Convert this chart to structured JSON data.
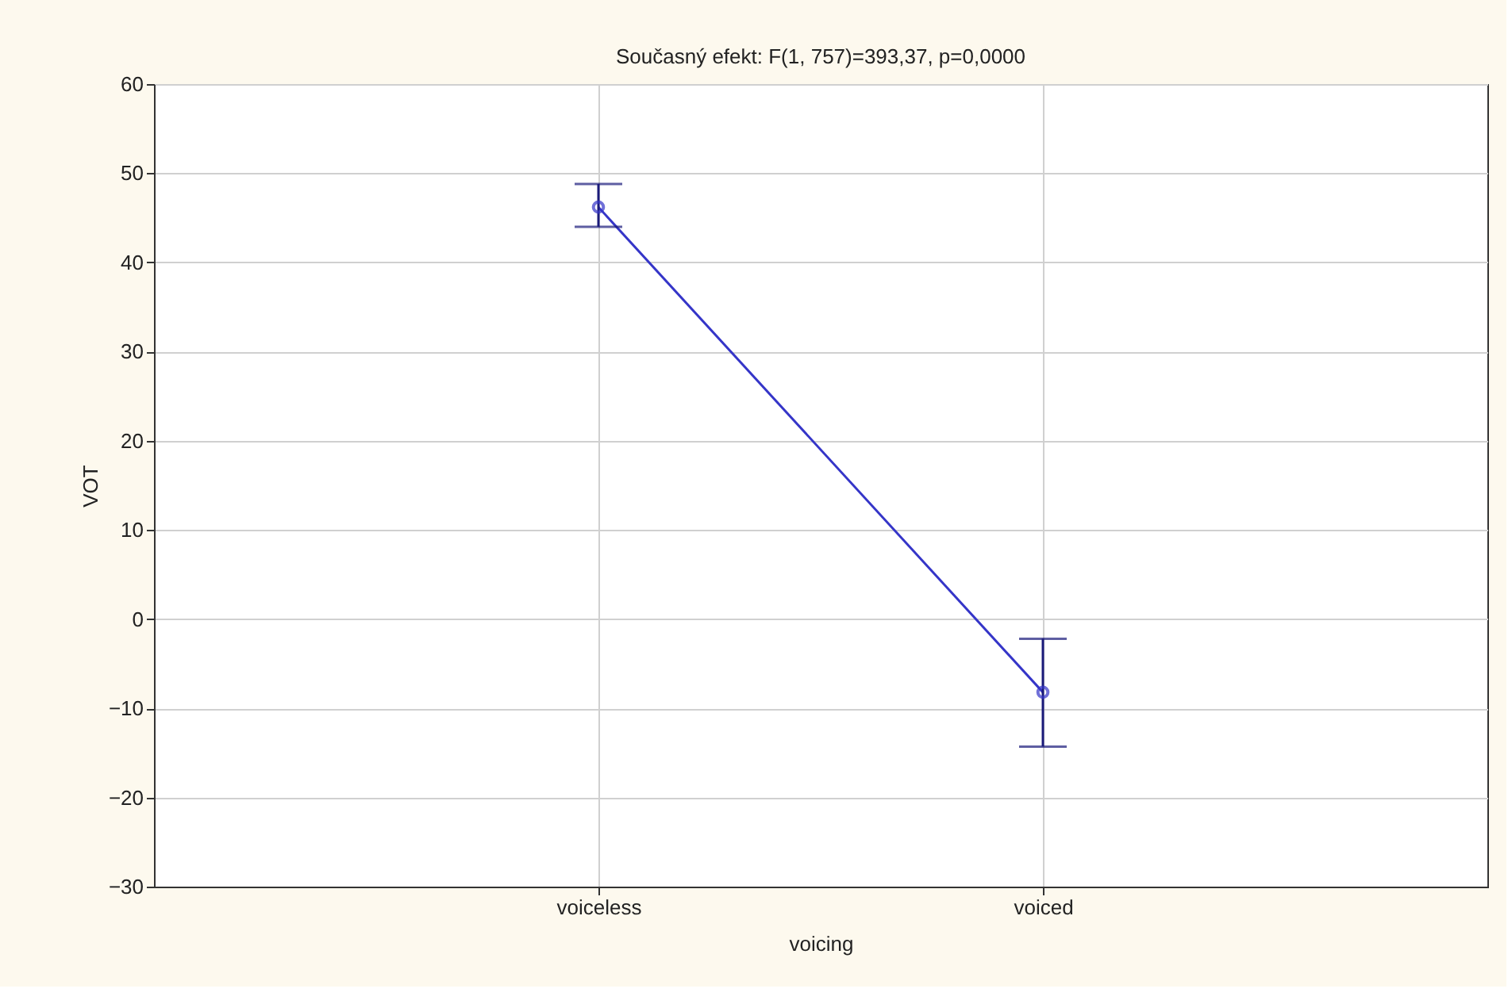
{
  "chart_data": {
    "type": "line",
    "title": "Současný efekt: F(1, 757)=393,37, p=0,0000",
    "xlabel": "voicing",
    "ylabel": "VOT",
    "categories": [
      "voiceless",
      "voiced"
    ],
    "series": [
      {
        "color": "#3535c8",
        "values": [
          46.2,
          -8.2
        ],
        "errors": [
          [
            44.0,
            48.8
          ],
          [
            -14.3,
            -2.2
          ]
        ]
      }
    ],
    "ylim": [
      -30,
      60
    ],
    "yticks": [
      -30,
      -20,
      -10,
      0,
      10,
      20,
      30,
      40,
      50,
      60
    ],
    "grid": true,
    "marker": "circle"
  }
}
